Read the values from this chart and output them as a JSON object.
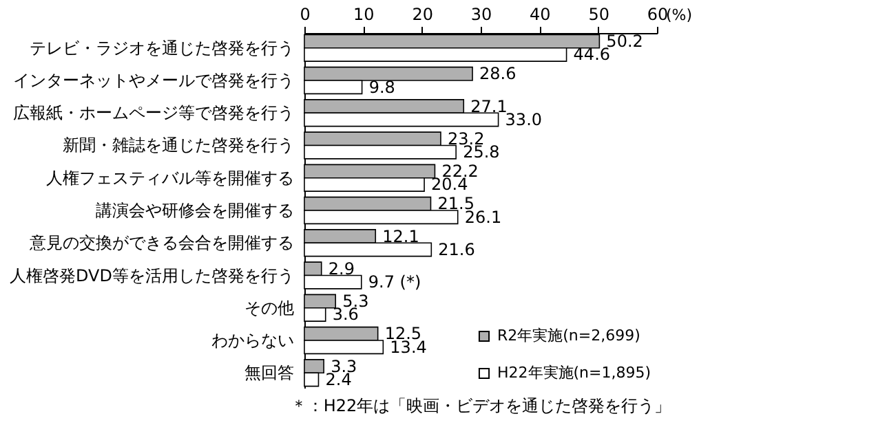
{
  "chart_data": {
    "type": "bar",
    "orientation": "horizontal",
    "xlabel": "(%)",
    "categories": [
      "テレビ・ラジオを通じた啓発を行う",
      "インターネットやメールで啓発を行う",
      "広報紙・ホームページ等で啓発を行う",
      "新聞・雑誌を通じた啓発を行う",
      "人権フェスティバル等を開催する",
      "講演会や研修会を開催する",
      "意見の交換ができる会合を開催する",
      "人権啓発DVD等を活用した啓発を行う",
      "その他",
      "わからない",
      "無回答"
    ],
    "series": [
      {
        "name": "R2年実施(n=2,699)",
        "color": "#b0b0b0",
        "values": [
          50.2,
          28.6,
          27.1,
          23.2,
          22.2,
          21.5,
          12.1,
          2.9,
          5.3,
          12.5,
          3.3
        ],
        "value_labels": [
          "50.2",
          "28.6",
          "27.1",
          "23.2",
          "22.2",
          "21.5",
          "12.1",
          "2.9",
          "5.3",
          "12.5",
          "3.3"
        ]
      },
      {
        "name": "H22年実施(n=1,895)",
        "color": "#ffffff",
        "values": [
          44.6,
          9.8,
          33.0,
          25.8,
          20.4,
          26.1,
          21.6,
          9.7,
          3.6,
          13.4,
          2.4
        ],
        "value_labels": [
          "44.6",
          "9.8",
          "33.0",
          "25.8",
          "20.4",
          "26.1",
          "21.6",
          "9.7 (*)",
          "3.6",
          "13.4",
          "2.4"
        ]
      }
    ],
    "xlim": [
      0,
      60
    ],
    "xticks": [
      0,
      10,
      20,
      30,
      40,
      50,
      60
    ],
    "legend": "bottom right",
    "annotations": [
      "＊：H22年は「映画・ビデオを通じた啓発を行う」"
    ]
  }
}
